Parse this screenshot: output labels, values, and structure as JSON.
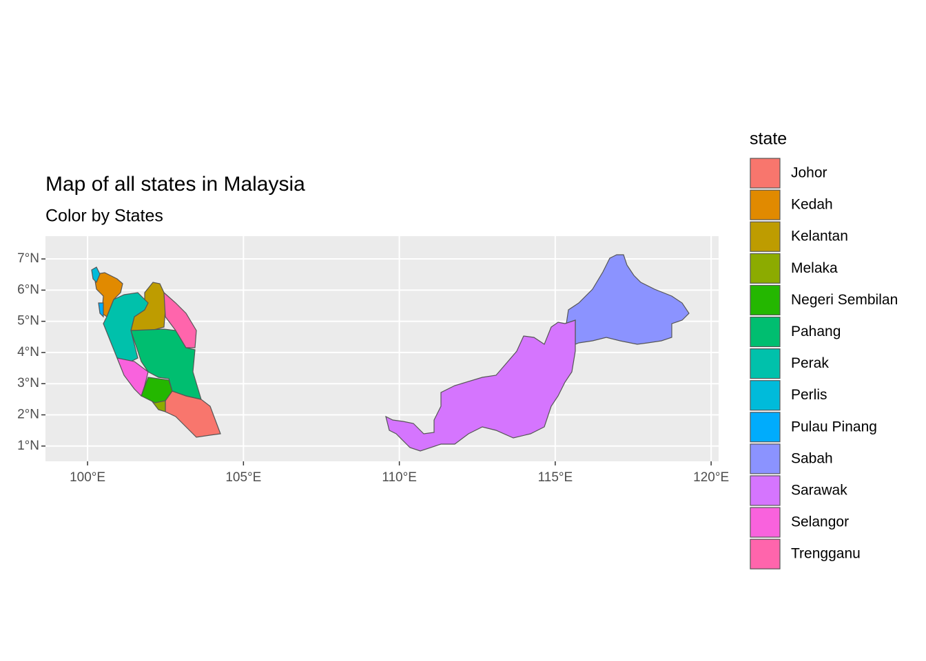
{
  "chart_data": {
    "type": "map",
    "title": "Map of all states in Malaysia",
    "subtitle": "Color by States",
    "legend_title": "state",
    "legend_position": "right",
    "grid": true,
    "xlim": [
      98.65,
      120.24
    ],
    "ylim": [
      0.51,
      7.73
    ],
    "xticks": [
      {
        "value": 100,
        "label": "100°E"
      },
      {
        "value": 105,
        "label": "105°E"
      },
      {
        "value": 110,
        "label": "110°E"
      },
      {
        "value": 115,
        "label": "115°E"
      },
      {
        "value": 120,
        "label": "120°E"
      }
    ],
    "yticks": [
      {
        "value": 1,
        "label": "1°N"
      },
      {
        "value": 2,
        "label": "2°N"
      },
      {
        "value": 3,
        "label": "3°N"
      },
      {
        "value": 4,
        "label": "4°N"
      },
      {
        "value": 5,
        "label": "5°N"
      },
      {
        "value": 6,
        "label": "6°N"
      },
      {
        "value": 7,
        "label": "7°N"
      }
    ],
    "series": [
      {
        "name": "Johor",
        "color": "#F8766D"
      },
      {
        "name": "Kedah",
        "color": "#E18A00"
      },
      {
        "name": "Kelantan",
        "color": "#BE9C00"
      },
      {
        "name": "Melaka",
        "color": "#8CAB00"
      },
      {
        "name": "Negeri Sembilan",
        "color": "#24B700"
      },
      {
        "name": "Pahang",
        "color": "#00BE70"
      },
      {
        "name": "Perak",
        "color": "#00C1AB"
      },
      {
        "name": "Perlis",
        "color": "#00BBDA"
      },
      {
        "name": "Pulau Pinang",
        "color": "#00ACFC"
      },
      {
        "name": "Sabah",
        "color": "#8B93FF"
      },
      {
        "name": "Sarawak",
        "color": "#D575FE"
      },
      {
        "name": "Selangor",
        "color": "#F962DD"
      },
      {
        "name": "Trengganu",
        "color": "#FF65AC"
      }
    ]
  }
}
